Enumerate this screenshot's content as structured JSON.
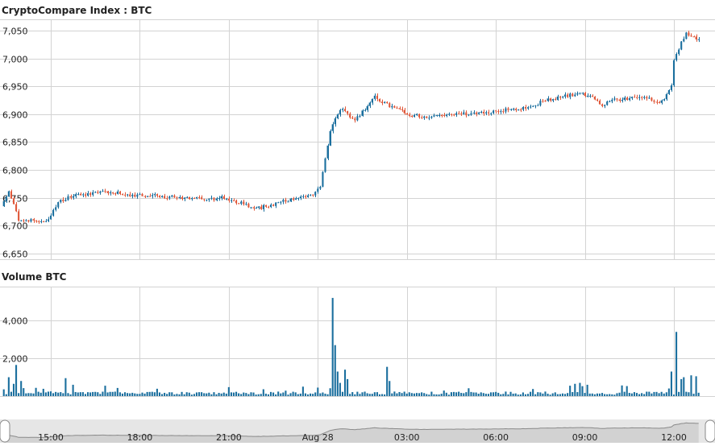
{
  "colors": {
    "up": "#1b6f9e",
    "down": "#e0583a",
    "volume": "#1b6f9e",
    "grid": "#d3d3d3",
    "axis_text": "#222222",
    "navigator_bg": "#e6e6e6",
    "navigator_line": "#8a8a8a",
    "navigator_fill": "#d2d2d2"
  },
  "chart_data": [
    {
      "type": "candlestick",
      "title": "CryptoCompare Index : BTC",
      "y_ticks": [
        6650,
        6700,
        6750,
        6800,
        6850,
        6900,
        6950,
        7000,
        7050
      ],
      "y_tick_labels": [
        "6,650",
        "6,700",
        "6,750",
        "6,800",
        "6,850",
        "6,900",
        "6,950",
        "7,000",
        "7,050"
      ],
      "ylim": [
        6640,
        7070
      ],
      "grid": true,
      "interval_minutes": 5,
      "first_candle_time": "Aug 27 13:25",
      "last_candle_time": "Aug 28 12:50",
      "price_anchors": [
        {
          "t": "Aug 27 13:25",
          "price": 6735
        },
        {
          "t": "Aug 27 13:40",
          "price": 6760
        },
        {
          "t": "Aug 27 14:00",
          "price": 6712
        },
        {
          "t": "Aug 27 15:00",
          "price": 6708
        },
        {
          "t": "Aug 27 15:20",
          "price": 6745
        },
        {
          "t": "Aug 27 16:00",
          "price": 6755
        },
        {
          "t": "Aug 27 17:00",
          "price": 6760
        },
        {
          "t": "Aug 27 18:00",
          "price": 6755
        },
        {
          "t": "Aug 27 19:00",
          "price": 6752
        },
        {
          "t": "Aug 27 20:00",
          "price": 6748
        },
        {
          "t": "Aug 27 21:00",
          "price": 6750
        },
        {
          "t": "Aug 27 22:00",
          "price": 6730
        },
        {
          "t": "Aug 27 23:00",
          "price": 6745
        },
        {
          "t": "Aug 28 00:00",
          "price": 6758
        },
        {
          "t": "Aug 28 00:10",
          "price": 6770
        },
        {
          "t": "Aug 28 00:30",
          "price": 6870
        },
        {
          "t": "Aug 28 00:50",
          "price": 6910
        },
        {
          "t": "Aug 28 01:20",
          "price": 6888
        },
        {
          "t": "Aug 28 02:00",
          "price": 6930
        },
        {
          "t": "Aug 28 02:30",
          "price": 6915
        },
        {
          "t": "Aug 28 03:10",
          "price": 6898
        },
        {
          "t": "Aug 28 04:00",
          "price": 6895
        },
        {
          "t": "Aug 28 05:00",
          "price": 6900
        },
        {
          "t": "Aug 28 06:00",
          "price": 6905
        },
        {
          "t": "Aug 28 07:00",
          "price": 6910
        },
        {
          "t": "Aug 28 08:00",
          "price": 6928
        },
        {
          "t": "Aug 28 09:00",
          "price": 6938
        },
        {
          "t": "Aug 28 09:40",
          "price": 6918
        },
        {
          "t": "Aug 28 10:00",
          "price": 6925
        },
        {
          "t": "Aug 28 11:00",
          "price": 6930
        },
        {
          "t": "Aug 28 11:40",
          "price": 6922
        },
        {
          "t": "Aug 28 12:00",
          "price": 6950
        },
        {
          "t": "Aug 28 12:05",
          "price": 7000
        },
        {
          "t": "Aug 28 12:30",
          "price": 7045
        },
        {
          "t": "Aug 28 12:50",
          "price": 7035
        }
      ]
    },
    {
      "type": "bar",
      "title": "Volume BTC",
      "y_ticks": [
        0,
        2000,
        4000
      ],
      "y_tick_labels": [
        "",
        "2,000",
        "4,000"
      ],
      "ylim": [
        0,
        5800
      ],
      "grid": true,
      "baseline": 150,
      "spikes": [
        {
          "t": "Aug 27 13:35",
          "value": 1000
        },
        {
          "t": "Aug 27 13:45",
          "value": 650
        },
        {
          "t": "Aug 27 13:50",
          "value": 1650
        },
        {
          "t": "Aug 27 14:00",
          "value": 800
        },
        {
          "t": "Aug 27 15:00",
          "value": 250
        },
        {
          "t": "Aug 27 15:30",
          "value": 950
        },
        {
          "t": "Aug 27 15:45",
          "value": 600
        },
        {
          "t": "Aug 27 16:50",
          "value": 550
        },
        {
          "t": "Aug 27 23:30",
          "value": 500
        },
        {
          "t": "Aug 28 00:00",
          "value": 450
        },
        {
          "t": "Aug 28 00:30",
          "value": 5200
        },
        {
          "t": "Aug 28 00:35",
          "value": 2700
        },
        {
          "t": "Aug 28 00:40",
          "value": 1300
        },
        {
          "t": "Aug 28 00:45",
          "value": 700
        },
        {
          "t": "Aug 28 00:55",
          "value": 1400
        },
        {
          "t": "Aug 28 01:00",
          "value": 900
        },
        {
          "t": "Aug 28 02:20",
          "value": 1550
        },
        {
          "t": "Aug 28 02:25",
          "value": 800
        },
        {
          "t": "Aug 28 08:30",
          "value": 550
        },
        {
          "t": "Aug 28 08:40",
          "value": 650
        },
        {
          "t": "Aug 28 08:50",
          "value": 700
        },
        {
          "t": "Aug 28 09:05",
          "value": 600
        },
        {
          "t": "Aug 28 11:55",
          "value": 1300
        },
        {
          "t": "Aug 28 12:05",
          "value": 3400
        },
        {
          "t": "Aug 28 12:15",
          "value": 900
        },
        {
          "t": "Aug 28 12:20",
          "value": 1000
        },
        {
          "t": "Aug 28 12:35",
          "value": 1100
        },
        {
          "t": "Aug 28 12:45",
          "value": 1050
        }
      ]
    }
  ],
  "x_axis": {
    "ticks": [
      {
        "t": "Aug 27 15:00",
        "label": "15:00"
      },
      {
        "t": "Aug 27 18:00",
        "label": "18:00"
      },
      {
        "t": "Aug 27 21:00",
        "label": "21:00"
      },
      {
        "t": "Aug 28 00:00",
        "label": "Aug 28"
      },
      {
        "t": "Aug 28 03:00",
        "label": "03:00"
      },
      {
        "t": "Aug 28 06:00",
        "label": "06:00"
      },
      {
        "t": "Aug 28 09:00",
        "label": "09:00"
      },
      {
        "t": "Aug 28 12:00",
        "label": "12:00"
      }
    ]
  }
}
